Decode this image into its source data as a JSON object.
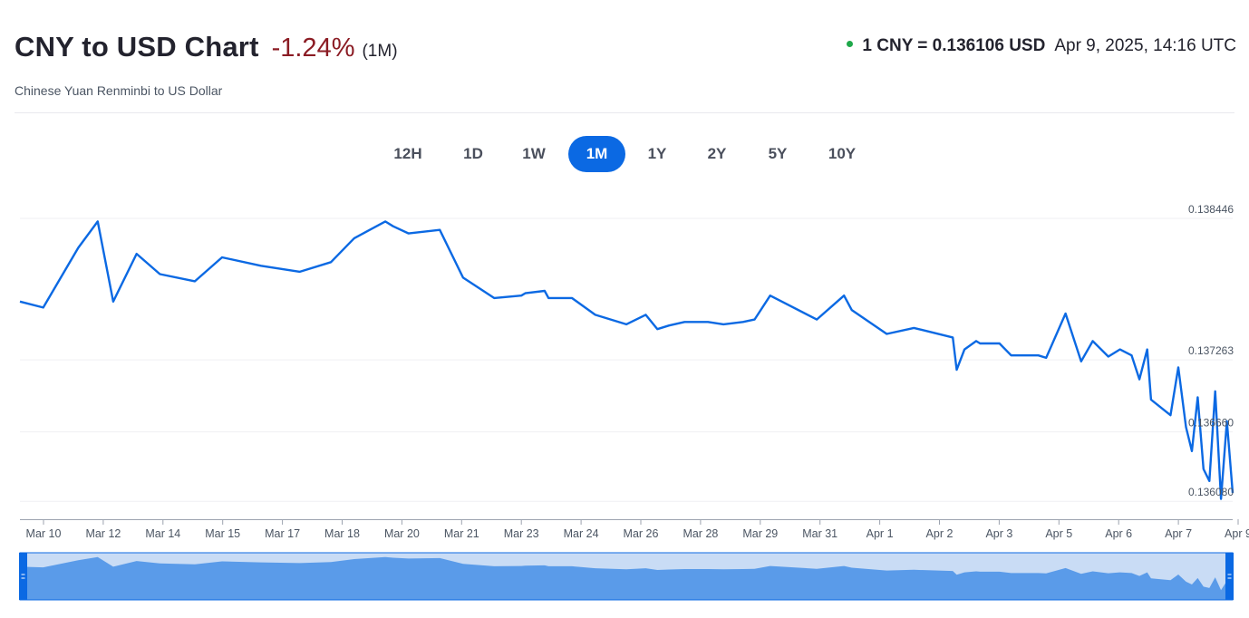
{
  "header": {
    "title": "CNY to USD Chart",
    "change": "-1.24%",
    "period": "(1M)",
    "subtitle": "Chinese Yuan Renminbi to US Dollar",
    "rate": "1 CNY = 0.136106 USD",
    "timestamp": "Apr 9, 2025, 14:16 UTC"
  },
  "range_tabs": [
    {
      "label": "12H",
      "active": false
    },
    {
      "label": "1D",
      "active": false
    },
    {
      "label": "1W",
      "active": false
    },
    {
      "label": "1M",
      "active": true
    },
    {
      "label": "1Y",
      "active": false
    },
    {
      "label": "2Y",
      "active": false
    },
    {
      "label": "5Y",
      "active": false
    },
    {
      "label": "10Y",
      "active": false
    }
  ],
  "colors": {
    "line": "#0b69e3",
    "navigator_fill": "#5a9be9",
    "navigator_bg": "#c9dcf5",
    "negative": "#8b1c24",
    "live": "#1fa84a"
  },
  "chart_data": {
    "type": "line",
    "title": "CNY to USD Chart",
    "xlabel": "",
    "ylabel": "",
    "grid": "horizontal",
    "ylim": [
      0.13593,
      0.138446
    ],
    "y_ticks": [
      {
        "value": 0.138446,
        "label": "0.138446"
      },
      {
        "value": 0.137263,
        "label": "0.137263"
      },
      {
        "value": 0.13666,
        "label": "0.136660"
      },
      {
        "value": 0.13608,
        "label": "0.136080"
      }
    ],
    "x_ticks": [
      "Mar 10",
      "Mar 12",
      "Mar 14",
      "Mar 15",
      "Mar 17",
      "Mar 18",
      "Mar 20",
      "Mar 21",
      "Mar 23",
      "Mar 24",
      "Mar 26",
      "Mar 28",
      "Mar 29",
      "Mar 31",
      "Apr 1",
      "Apr 2",
      "Apr 3",
      "Apr 5",
      "Apr 6",
      "Apr 7",
      "Apr 9"
    ],
    "x": [
      0,
      0.6,
      1.5,
      2.0,
      2.4,
      3.0,
      3.6,
      4.5,
      5.2,
      6.2,
      7.2,
      8.0,
      8.6,
      9.4,
      9.6,
      10.0,
      10.8,
      11.4,
      12.2,
      12.9,
      13.0,
      13.5,
      13.6,
      14.2,
      14.8,
      15.6,
      16.1,
      16.4,
      16.7,
      17.1,
      17.7,
      18.1,
      18.6,
      18.9,
      19.3,
      20.5,
      21.2,
      21.4,
      22.3,
      23.0,
      24.0,
      24.1,
      24.3,
      24.6,
      24.7,
      25.2,
      25.5,
      26.2,
      26.4,
      26.9,
      27.3,
      27.6,
      28.0,
      28.3,
      28.6,
      28.8,
      29.0,
      29.1,
      29.6,
      29.8,
      30.0,
      30.15,
      30.3,
      30.45,
      30.6,
      30.75,
      30.9,
      31.05,
      31.2
    ],
    "series": [
      {
        "values": [
          0.13775,
          0.1377,
          0.1382,
          0.13842,
          0.13775,
          0.13815,
          0.13798,
          0.13792,
          0.13812,
          0.13805,
          0.138,
          0.13808,
          0.13828,
          0.13842,
          0.13838,
          0.13832,
          0.13835,
          0.13795,
          0.13778,
          0.1378,
          0.13782,
          0.13784,
          0.13778,
          0.13778,
          0.13764,
          0.13756,
          0.13764,
          0.13752,
          0.13755,
          0.13758,
          0.13758,
          0.13756,
          0.13758,
          0.1376,
          0.1378,
          0.1376,
          0.1378,
          0.13768,
          0.13748,
          0.13753,
          0.13745,
          0.13718,
          0.13735,
          0.13742,
          0.1374,
          0.1374,
          0.1373,
          0.1373,
          0.13728,
          0.13765,
          0.13725,
          0.13742,
          0.13729,
          0.13735,
          0.1373,
          0.1371,
          0.13735,
          0.13693,
          0.1368,
          0.1372,
          0.1367,
          0.1365,
          0.13695,
          0.13635,
          0.13625,
          0.137,
          0.1361,
          0.13675,
          0.13615
        ]
      }
    ]
  }
}
